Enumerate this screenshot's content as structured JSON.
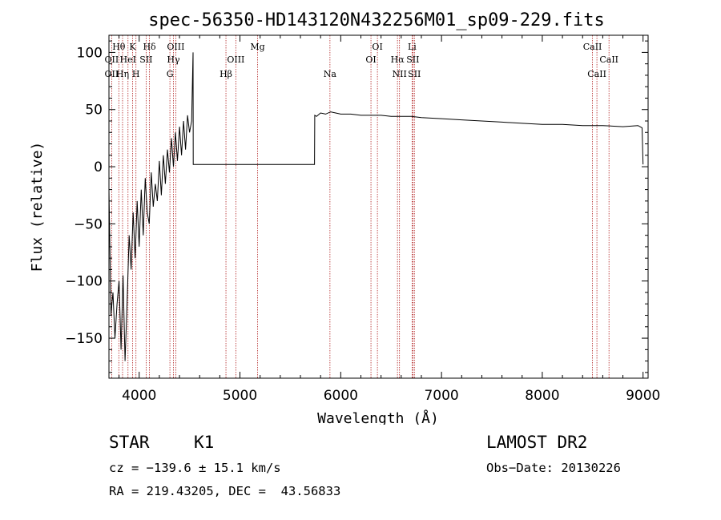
{
  "chart_data": {
    "type": "line",
    "title": "spec-56350-HD143120N432256M01_sp09-229.fits",
    "xlabel": "Wavelength (Å)",
    "ylabel": "Flux (relative)",
    "xlim": [
      3700,
      9050
    ],
    "ylim": [
      -185,
      115
    ],
    "xticks": [
      4000,
      5000,
      6000,
      7000,
      8000,
      9000
    ],
    "yticks": [
      -150,
      -100,
      -50,
      0,
      50,
      100
    ],
    "grid": false,
    "legend": "none",
    "series": [
      {
        "x": [
          3700,
          3720,
          3740,
          3760,
          3780,
          3800,
          3820,
          3840,
          3860,
          3880,
          3900,
          3920,
          3940,
          3960,
          3980,
          4000,
          4020,
          4040,
          4060,
          4080,
          4100,
          4120,
          4140,
          4160,
          4180,
          4200,
          4220,
          4240,
          4260,
          4280,
          4300,
          4320,
          4340,
          4360,
          4380,
          4400,
          4420,
          4440,
          4460,
          4480,
          4500,
          4520,
          4535,
          4536,
          4540,
          5000,
          5500,
          5740,
          5742,
          5760,
          5800,
          5850,
          5900,
          5950,
          6000,
          6100,
          6200,
          6300,
          6400,
          6500,
          6600,
          6700,
          6800,
          7000,
          7200,
          7400,
          7600,
          7800,
          8000,
          8200,
          8400,
          8600,
          8800,
          8950,
          8990,
          9000
        ],
        "y": [
          -20,
          -130,
          -110,
          -150,
          -120,
          -100,
          -160,
          -95,
          -170,
          -120,
          -60,
          -90,
          -40,
          -80,
          -30,
          -70,
          -20,
          -60,
          -10,
          -40,
          -50,
          -5,
          -35,
          -15,
          -30,
          5,
          -25,
          10,
          -15,
          15,
          -5,
          25,
          0,
          30,
          5,
          35,
          10,
          40,
          15,
          45,
          30,
          40,
          100,
          2,
          2,
          2,
          2,
          2,
          45,
          44,
          47,
          46,
          48,
          47,
          46,
          46,
          45,
          45,
          45,
          44,
          44,
          44,
          43,
          42,
          41,
          40,
          39,
          38,
          37,
          37,
          36,
          36,
          35,
          36,
          34,
          2
        ]
      }
    ],
    "line_markers": [
      {
        "label": "Hθ",
        "x": 3798,
        "row": 0
      },
      {
        "label": "OII",
        "x": 3727,
        "row": 1
      },
      {
        "label": "OII",
        "x": 3727,
        "row": 2
      },
      {
        "label": "Hη",
        "x": 3835,
        "row": 2
      },
      {
        "label": "K",
        "x": 3934,
        "row": 0
      },
      {
        "label": "HeI",
        "x": 3889,
        "row": 1
      },
      {
        "label": "H",
        "x": 3968,
        "row": 2
      },
      {
        "label": "SII",
        "x": 4069,
        "row": 1
      },
      {
        "label": "Hδ",
        "x": 4102,
        "row": 0
      },
      {
        "label": "OIII",
        "x": 4363,
        "row": 0
      },
      {
        "label": "Hγ",
        "x": 4340,
        "row": 1
      },
      {
        "label": "G",
        "x": 4305,
        "row": 2
      },
      {
        "label": "OIII",
        "x": 4959,
        "row": 1
      },
      {
        "label": "Hβ",
        "x": 4861,
        "row": 2
      },
      {
        "label": "Mg",
        "x": 5175,
        "row": 0
      },
      {
        "label": "Na",
        "x": 5893,
        "row": 2
      },
      {
        "label": "OI",
        "x": 6364,
        "row": 0
      },
      {
        "label": "OI",
        "x": 6300,
        "row": 1
      },
      {
        "label": "Li",
        "x": 6708,
        "row": 0
      },
      {
        "label": "Hα",
        "x": 6563,
        "row": 1
      },
      {
        "label": "SII",
        "x": 6716,
        "row": 1
      },
      {
        "label": "NII",
        "x": 6583,
        "row": 2
      },
      {
        "label": "SII",
        "x": 6731,
        "row": 2
      },
      {
        "label": "CaII",
        "x": 8498,
        "row": 0
      },
      {
        "label": "CaII",
        "x": 8662,
        "row": 1
      },
      {
        "label": "CaII",
        "x": 8542,
        "row": 2
      }
    ]
  },
  "info": {
    "class": "STAR",
    "subclass": "K1",
    "survey": "LAMOST DR2",
    "velocity": "cz = −139.6 ± 15.1 km/s",
    "obs_date": "Obs−Date: 20130226",
    "coords": "RA = 219.43205, DEC =  43.56833"
  },
  "colors": {
    "spectrum": "#000000",
    "marker_lines": "#b22222",
    "axes": "#000000"
  }
}
